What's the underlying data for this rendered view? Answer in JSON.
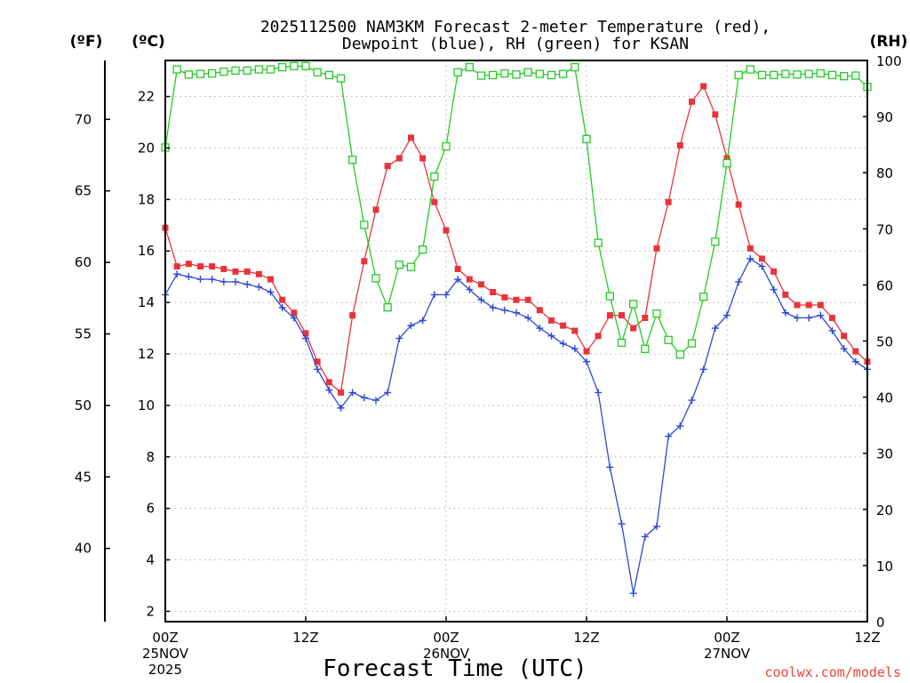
{
  "chart_data": {
    "type": "line",
    "title_line1": "2025112500 NAM3KM Forecast 2-meter Temperature (red),",
    "title_line2": "Dewpoint (blue), RH (green) for KSAN",
    "left_outer_unit": "(ºF)",
    "left_inner_unit": "(ºC)",
    "right_unit": "(RH)",
    "xlabel": "Forecast Time (UTC)",
    "credit": "coolwx.com/models",
    "x_ticks": [
      {
        "hour": 0,
        "lines": [
          "00Z",
          "25NOV",
          "2025"
        ]
      },
      {
        "hour": 12,
        "lines": [
          "12Z"
        ]
      },
      {
        "hour": 24,
        "lines": [
          "00Z",
          "26NOV"
        ]
      },
      {
        "hour": 36,
        "lines": [
          "12Z"
        ]
      },
      {
        "hour": 48,
        "lines": [
          "00Z",
          "27NOV"
        ]
      },
      {
        "hour": 60,
        "lines": [
          "12Z"
        ]
      }
    ],
    "xlim": [
      0,
      60
    ],
    "celsius_ylim": [
      1.6,
      23.4
    ],
    "celsius_ticks": [
      2,
      4,
      6,
      8,
      10,
      12,
      14,
      16,
      18,
      20,
      22
    ],
    "fahrenheit_ticks": [
      40,
      45,
      50,
      55,
      60,
      65,
      70
    ],
    "rh_ylim": [
      0,
      100
    ],
    "rh_ticks": [
      0,
      10,
      20,
      30,
      40,
      50,
      60,
      70,
      80,
      90,
      100
    ],
    "series": [
      {
        "name": "Temperature (°C)",
        "color": "#e8333a",
        "marker": "filled-square",
        "axis": "celsius",
        "x": [
          0,
          1,
          2,
          3,
          4,
          5,
          6,
          7,
          8,
          9,
          10,
          11,
          12,
          13,
          14,
          15,
          16,
          17,
          18,
          19,
          20,
          21,
          22,
          23,
          24,
          25,
          26,
          27,
          28,
          29,
          30,
          31,
          32,
          33,
          34,
          35,
          36,
          37,
          38,
          39,
          40,
          41,
          42,
          43,
          44,
          45,
          46,
          47,
          48,
          49,
          50,
          51,
          52,
          53,
          54,
          55,
          56,
          57,
          58,
          59,
          60
        ],
        "values": [
          16.9,
          15.4,
          15.5,
          15.4,
          15.4,
          15.3,
          15.2,
          15.2,
          15.1,
          14.9,
          14.1,
          13.6,
          12.8,
          11.7,
          10.9,
          10.5,
          13.5,
          15.6,
          17.6,
          19.3,
          19.6,
          20.4,
          19.6,
          17.9,
          16.8,
          15.3,
          14.9,
          14.7,
          14.4,
          14.2,
          14.1,
          14.1,
          13.7,
          13.3,
          13.1,
          12.9,
          12.1,
          12.7,
          13.5,
          13.5,
          13.0,
          13.4,
          16.1,
          17.9,
          20.1,
          21.8,
          22.4,
          21.3,
          19.6,
          17.8,
          16.1,
          15.7,
          15.2,
          14.3,
          13.9,
          13.9,
          13.9,
          13.4,
          12.7,
          12.1,
          11.7
        ]
      },
      {
        "name": "Dewpoint (°C)",
        "color": "#2d48d6",
        "marker": "plus",
        "axis": "celsius",
        "x": [
          0,
          1,
          2,
          3,
          4,
          5,
          6,
          7,
          8,
          9,
          10,
          11,
          12,
          13,
          14,
          15,
          16,
          17,
          18,
          19,
          20,
          21,
          22,
          23,
          24,
          25,
          26,
          27,
          28,
          29,
          30,
          31,
          32,
          33,
          34,
          35,
          36,
          37,
          38,
          39,
          40,
          41,
          42,
          43,
          44,
          45,
          46,
          47,
          48,
          49,
          50,
          51,
          52,
          53,
          54,
          55,
          56,
          57,
          58,
          59,
          60
        ],
        "values": [
          14.3,
          15.1,
          15.0,
          14.9,
          14.9,
          14.8,
          14.8,
          14.7,
          14.6,
          14.4,
          13.8,
          13.4,
          12.6,
          11.4,
          10.6,
          9.9,
          10.5,
          10.3,
          10.2,
          10.5,
          12.6,
          13.1,
          13.3,
          14.3,
          14.3,
          14.9,
          14.5,
          14.1,
          13.8,
          13.7,
          13.6,
          13.4,
          13.0,
          12.7,
          12.4,
          12.2,
          11.7,
          10.5,
          7.6,
          5.4,
          2.7,
          4.9,
          5.3,
          8.8,
          9.2,
          10.2,
          11.4,
          13.0,
          13.5,
          14.8,
          15.7,
          15.4,
          14.5,
          13.6,
          13.4,
          13.4,
          13.5,
          12.9,
          12.2,
          11.7,
          11.4
        ]
      },
      {
        "name": "RH (%)",
        "color": "#22cc22",
        "marker": "open-square",
        "axis": "rh",
        "x": [
          0,
          1,
          2,
          3,
          4,
          5,
          6,
          7,
          8,
          9,
          10,
          11,
          12,
          13,
          14,
          15,
          16,
          17,
          18,
          19,
          20,
          21,
          22,
          23,
          24,
          25,
          26,
          27,
          28,
          29,
          30,
          31,
          32,
          33,
          34,
          35,
          36,
          37,
          38,
          39,
          40,
          41,
          42,
          43,
          44,
          45,
          46,
          47,
          48,
          49,
          50,
          51,
          52,
          53,
          54,
          55,
          56,
          57,
          58,
          59,
          60
        ],
        "values": [
          84.5,
          98.4,
          97.5,
          97.6,
          97.7,
          98.0,
          98.2,
          98.2,
          98.4,
          98.4,
          98.8,
          99.0,
          99.0,
          97.9,
          97.4,
          96.8,
          82.3,
          70.7,
          61.2,
          56.0,
          63.6,
          63.2,
          66.3,
          79.3,
          84.7,
          97.9,
          98.8,
          97.3,
          97.4,
          97.7,
          97.5,
          97.9,
          97.6,
          97.4,
          97.6,
          98.8,
          86.0,
          67.5,
          58.0,
          49.7,
          56.6,
          48.6,
          54.9,
          50.2,
          47.6,
          49.6,
          57.9,
          67.7,
          81.7,
          97.4,
          98.4,
          97.4,
          97.4,
          97.6,
          97.5,
          97.6,
          97.7,
          97.4,
          97.2,
          97.3,
          95.3
        ]
      }
    ]
  }
}
